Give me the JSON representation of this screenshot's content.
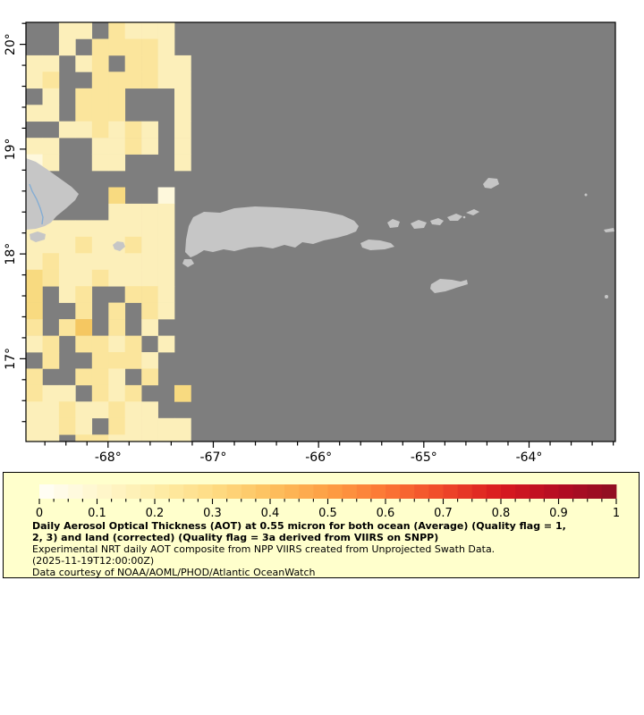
{
  "map": {
    "ocean_color": "#7E7E7E",
    "land_color": "#C6C6C6",
    "river_color": "#85ADD3",
    "axis_color": "#000000",
    "x_axis_labels": [
      "-68°",
      "-67°",
      "-66°",
      "-65°",
      "-64°"
    ],
    "y_axis_labels": [
      "20°",
      "19°",
      "18°",
      "17°"
    ],
    "x_axis_values": [
      -68,
      -67,
      -66,
      -65,
      -64
    ],
    "y_axis_values": [
      20,
      19,
      18,
      17
    ],
    "lon_range": [
      -68.78,
      -63.18
    ],
    "lat_range": [
      16.21,
      20.21
    ],
    "aot_palette": {
      "a": "#FEF8DC",
      "b": "#FCEFBA",
      "c": "#FBE59C",
      "d": "#F8DA80",
      "e": "#F5C761"
    },
    "aot_grid": [
      "..bb.cbbb.",
      "..b.ccccb.",
      "bb.bc.ccbb",
      "bc..ccccbb",
      ".b.ccc...b",
      "bb.ccc...b",
      "..bbcbcb.b",
      "bb..bbcb.b",
      "ab..bb...b",
      "..........",
      ".....d..a.",
      ".....bbbb.",
      "bbbbbbbbb.",
      "bbbcbbcbb.",
      "bcbbbbbbb.",
      "dcbbcbbbb.",
      "d.bc..ccb.",
      "d..c.c.cb.",
      "c.ce.c.b..",
      "bc.ccbc.b.",
      ".c..cccb..",
      "c..ccb.c..",
      "cbb.cbc..d",
      "bbcbbcbb..",
      "bbcb.cbbbb",
      "bb.ccbbbbb"
    ]
  },
  "legend": {
    "bg_color": "#FFFFCC",
    "border_color": "#000000",
    "colorbar_min": 0,
    "colorbar_max": 1,
    "colorbar_ticks": [
      "0",
      "0.1",
      "0.2",
      "0.3",
      "0.4",
      "0.5",
      "0.6",
      "0.7",
      "0.8",
      "0.9",
      "1"
    ],
    "colorbar_stops": [
      "#FFFEF8",
      "#FFF7CE",
      "#FEEDA9",
      "#FEDC84",
      "#FDC05E",
      "#FD9F44",
      "#FC7634",
      "#EF4829",
      "#D81A20",
      "#B50C23",
      "#8E0E22"
    ],
    "title_line1": "Daily Aerosol Optical Thickness (AOT) at 0.55 micron for both ocean (Average) (Quality flag = 1,",
    "title_line2": "2, 3) and land (corrected) (Quality flag = 3a derived from VIIRS on SNPP)",
    "desc_line1": "Experimental NRT daily AOT composite from NPP VIIRS created from Unprojected Swath Data.",
    "desc_line2": "(2025-11-19T12:00:00Z)",
    "desc_line3": "Data courtesy of NOAA/AOML/PHOD/Atlantic OceanWatch"
  }
}
